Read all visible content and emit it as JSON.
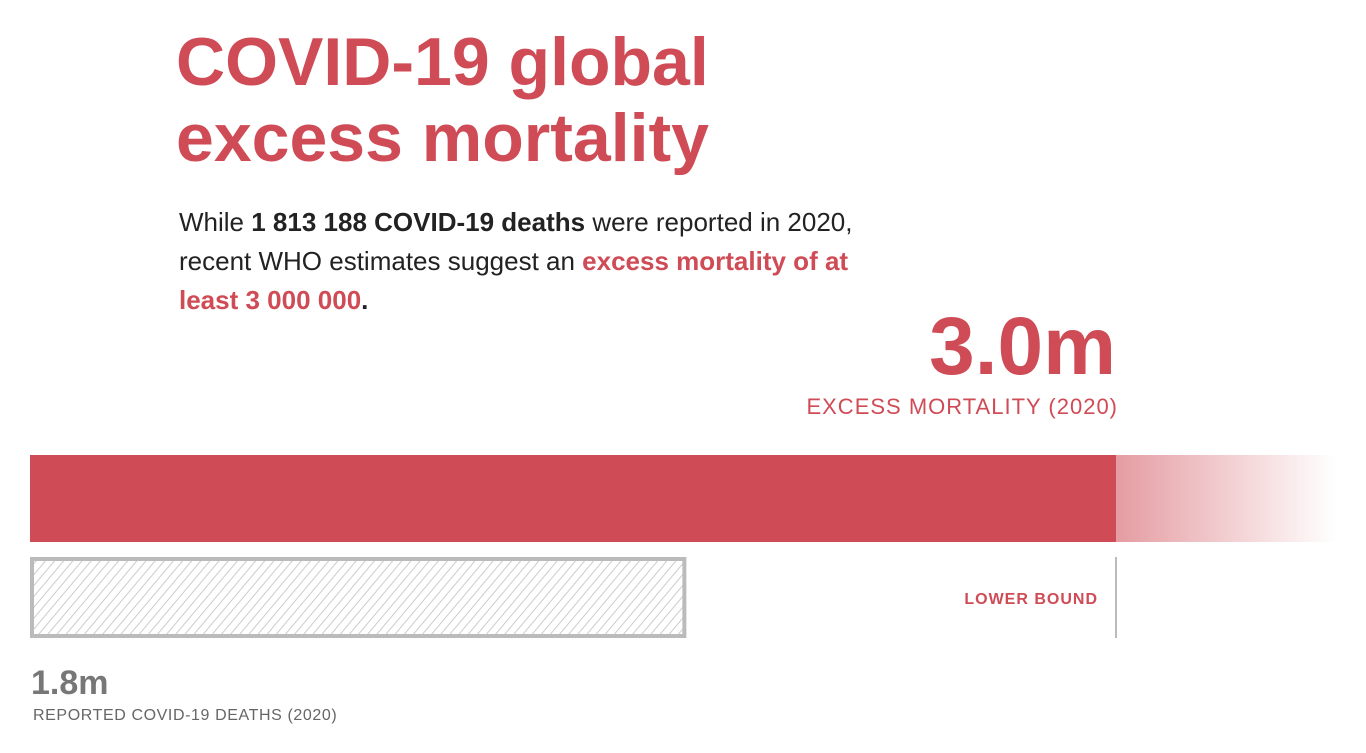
{
  "title": [
    "COVID-19 global",
    "excess mortality"
  ],
  "lead": {
    "t1": "While ",
    "b1": "1 813 188 COVID-19 deaths",
    "t2": " were reported in 2020, recent WHO estimates suggest an ",
    "h1": "excess mortality of at least 3 000 000",
    "t3": "."
  },
  "colors": {
    "accent": "#cf4b55",
    "reported": "#bbbbbb",
    "text": "#222222"
  },
  "chart_data": {
    "type": "bar",
    "orientation": "horizontal",
    "unit": "million deaths",
    "bars": [
      {
        "label": "EXCESS MORTALITY (2020)",
        "value_label": "3.0m",
        "value": 3.0,
        "style": "solid with fading extension (lower bound)"
      },
      {
        "label": "REPORTED COVID-19 DEATHS (2020)",
        "value_label": "1.8m",
        "value": 1.813188,
        "style": "hatched"
      }
    ],
    "annotation": "LOWER BOUND"
  }
}
